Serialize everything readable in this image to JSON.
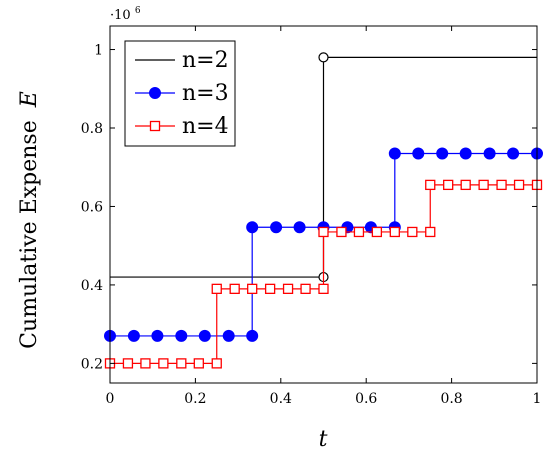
{
  "chart_data": {
    "type": "line",
    "step": true,
    "xlabel": "t",
    "ylabel": "Cumulative Expense",
    "ylabel_symbol": "E",
    "y_multiplier_base": "·10",
    "y_multiplier_exp": "6",
    "xlim": [
      0,
      1
    ],
    "ylim": [
      0.15,
      1.06
    ],
    "xticks": [
      0,
      0.2,
      0.4,
      0.6,
      0.8,
      1
    ],
    "xtick_labels": [
      "0",
      "0.2",
      "0.4",
      "0.6",
      "0.8",
      "1"
    ],
    "yticks": [
      0.2,
      0.4,
      0.6,
      0.8,
      1
    ],
    "ytick_labels": [
      "0.2",
      "0.4",
      "0.6",
      "0.8",
      "1"
    ],
    "grid": false,
    "legend_position": "top-left",
    "series": [
      {
        "name": "n=2",
        "color": "#000000",
        "marker": "open-circle",
        "steps": [
          {
            "x0": 0,
            "x1": 0.5,
            "y": 0.42
          },
          {
            "x0": 0.5,
            "x1": 1,
            "y": 0.98
          }
        ],
        "points": [
          {
            "x": 0.5,
            "y": 0.42
          },
          {
            "x": 0.5,
            "y": 0.98
          }
        ]
      },
      {
        "name": "n=3",
        "color": "#0000ff",
        "marker": "filled-circle",
        "steps": [
          {
            "x0": 0,
            "x1": 0.333,
            "y": 0.27
          },
          {
            "x0": 0.333,
            "x1": 0.667,
            "y": 0.547
          },
          {
            "x0": 0.667,
            "x1": 1,
            "y": 0.735
          }
        ],
        "points": [
          {
            "x": 0,
            "y": 0.27
          },
          {
            "x": 0.056,
            "y": 0.27
          },
          {
            "x": 0.111,
            "y": 0.27
          },
          {
            "x": 0.167,
            "y": 0.27
          },
          {
            "x": 0.222,
            "y": 0.27
          },
          {
            "x": 0.278,
            "y": 0.27
          },
          {
            "x": 0.333,
            "y": 0.27
          },
          {
            "x": 0.333,
            "y": 0.547
          },
          {
            "x": 0.389,
            "y": 0.547
          },
          {
            "x": 0.444,
            "y": 0.547
          },
          {
            "x": 0.5,
            "y": 0.547
          },
          {
            "x": 0.556,
            "y": 0.547
          },
          {
            "x": 0.611,
            "y": 0.547
          },
          {
            "x": 0.667,
            "y": 0.547
          },
          {
            "x": 0.667,
            "y": 0.735
          },
          {
            "x": 0.722,
            "y": 0.735
          },
          {
            "x": 0.778,
            "y": 0.735
          },
          {
            "x": 0.833,
            "y": 0.735
          },
          {
            "x": 0.889,
            "y": 0.735
          },
          {
            "x": 0.944,
            "y": 0.735
          },
          {
            "x": 1,
            "y": 0.735
          }
        ]
      },
      {
        "name": "n=4",
        "color": "#ff0000",
        "marker": "open-square",
        "steps": [
          {
            "x0": 0,
            "x1": 0.25,
            "y": 0.2
          },
          {
            "x0": 0.25,
            "x1": 0.5,
            "y": 0.39
          },
          {
            "x0": 0.5,
            "x1": 0.75,
            "y": 0.535
          },
          {
            "x0": 0.75,
            "x1": 1,
            "y": 0.655
          }
        ],
        "points": [
          {
            "x": 0,
            "y": 0.2
          },
          {
            "x": 0.042,
            "y": 0.2
          },
          {
            "x": 0.083,
            "y": 0.2
          },
          {
            "x": 0.125,
            "y": 0.2
          },
          {
            "x": 0.167,
            "y": 0.2
          },
          {
            "x": 0.208,
            "y": 0.2
          },
          {
            "x": 0.25,
            "y": 0.2
          },
          {
            "x": 0.25,
            "y": 0.39
          },
          {
            "x": 0.292,
            "y": 0.39
          },
          {
            "x": 0.333,
            "y": 0.39
          },
          {
            "x": 0.375,
            "y": 0.39
          },
          {
            "x": 0.417,
            "y": 0.39
          },
          {
            "x": 0.458,
            "y": 0.39
          },
          {
            "x": 0.5,
            "y": 0.39
          },
          {
            "x": 0.5,
            "y": 0.535
          },
          {
            "x": 0.542,
            "y": 0.535
          },
          {
            "x": 0.583,
            "y": 0.535
          },
          {
            "x": 0.625,
            "y": 0.535
          },
          {
            "x": 0.667,
            "y": 0.535
          },
          {
            "x": 0.708,
            "y": 0.535
          },
          {
            "x": 0.75,
            "y": 0.535
          },
          {
            "x": 0.75,
            "y": 0.655
          },
          {
            "x": 0.792,
            "y": 0.655
          },
          {
            "x": 0.833,
            "y": 0.655
          },
          {
            "x": 0.875,
            "y": 0.655
          },
          {
            "x": 0.917,
            "y": 0.655
          },
          {
            "x": 0.958,
            "y": 0.655
          },
          {
            "x": 1,
            "y": 0.655
          }
        ]
      }
    ]
  }
}
